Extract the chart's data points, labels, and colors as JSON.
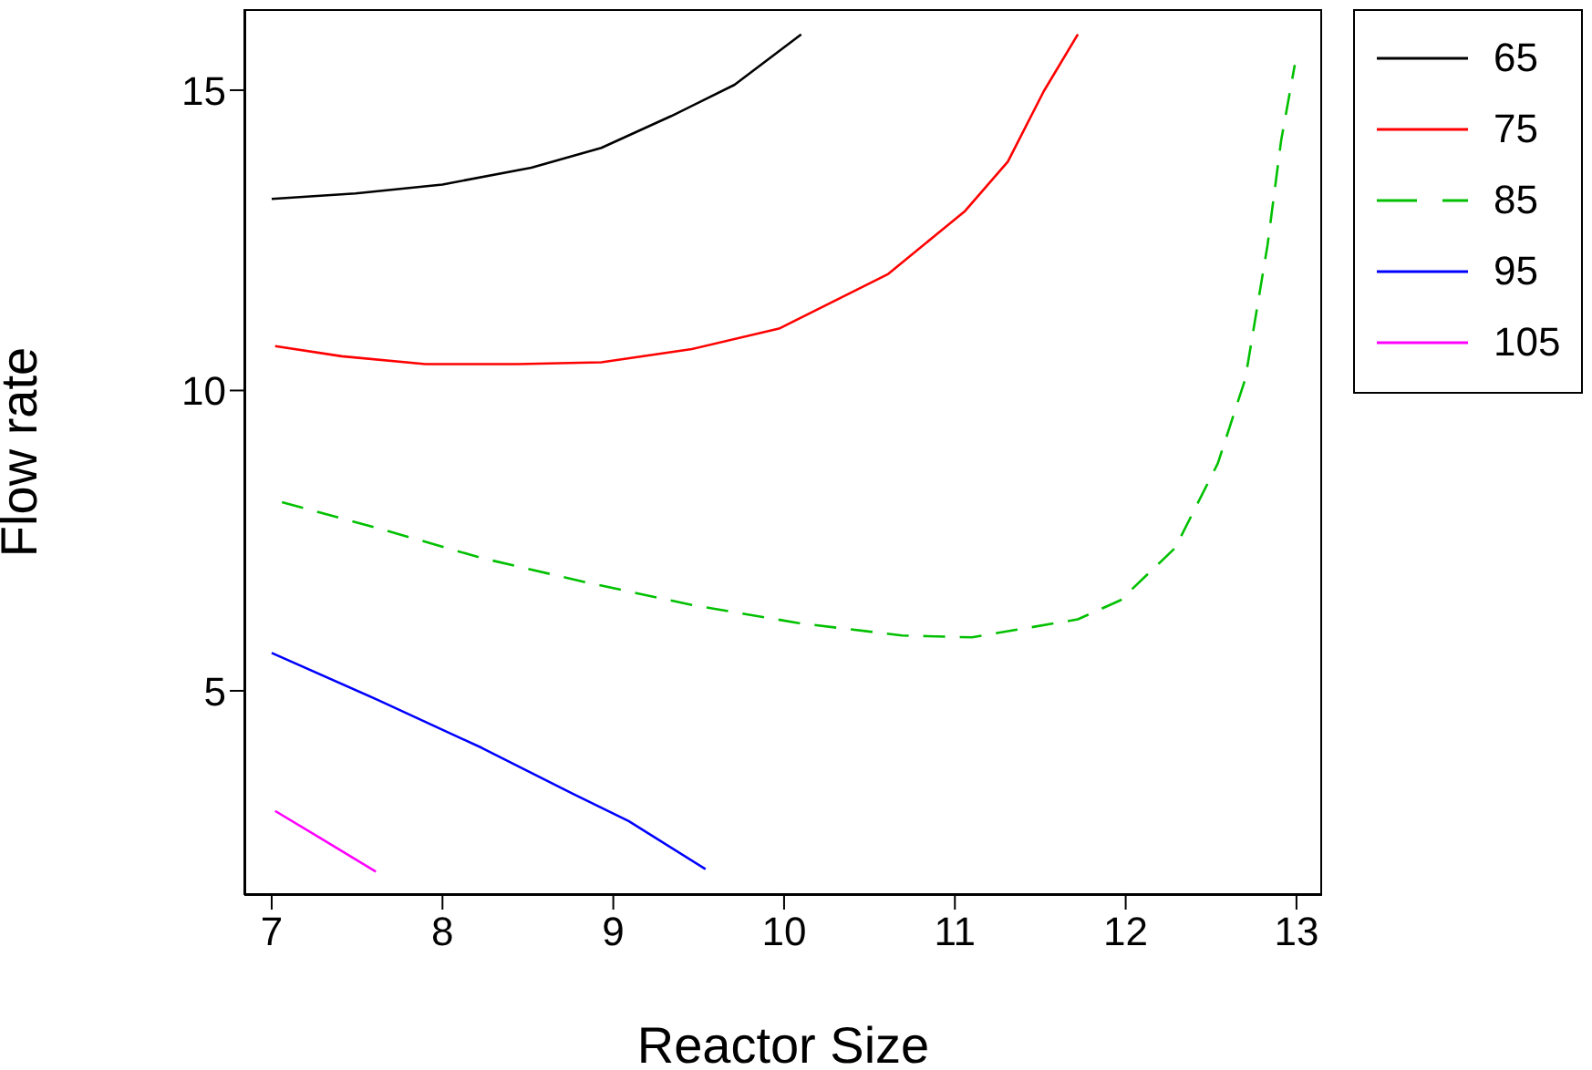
{
  "chart_data": {
    "type": "line",
    "xlabel": "Reactor Size",
    "ylabel": "Flow rate",
    "xlim": [
      6.84,
      13.15
    ],
    "ylim": [
      1.6,
      16.35
    ],
    "xticks": [
      7,
      8,
      9,
      10,
      11,
      12,
      13
    ],
    "yticks": [
      5,
      10,
      15
    ],
    "legend": "right",
    "grid": false,
    "series": [
      {
        "name": "65",
        "color": "#000000",
        "line_style": "solid",
        "x": [
          7,
          7.49,
          8,
          8.52,
          8.93,
          9.34,
          9.71,
          10.1
        ],
        "values": [
          13.19,
          13.28,
          13.43,
          13.71,
          14.04,
          14.57,
          15.09,
          15.93
        ]
      },
      {
        "name": "75",
        "color": "#ff0000",
        "line_style": "solid",
        "x": [
          7.02,
          7.41,
          7.9,
          8.44,
          8.93,
          9.46,
          9.97,
          10.61,
          11.06,
          11.31,
          11.52,
          11.72
        ],
        "values": [
          10.74,
          10.57,
          10.44,
          10.44,
          10.47,
          10.69,
          11.03,
          11.94,
          12.99,
          13.81,
          14.98,
          15.93
        ]
      },
      {
        "name": "85",
        "color": "#00c000",
        "line_style": "dashed",
        "x": [
          7.06,
          7.62,
          8.23,
          8.85,
          9.46,
          10.08,
          10.69,
          11.1,
          11.72,
          11.97,
          12.29,
          12.54,
          12.7,
          12.83,
          12.91,
          12.99
        ],
        "values": [
          8.14,
          7.71,
          7.21,
          6.8,
          6.43,
          6.13,
          5.92,
          5.89,
          6.19,
          6.51,
          7.38,
          8.79,
          10.19,
          12.41,
          14.16,
          15.42
        ]
      },
      {
        "name": "95",
        "color": "#0000ff",
        "line_style": "solid",
        "x": [
          7,
          7.62,
          8.23,
          8.76,
          9.09,
          9.54
        ],
        "values": [
          5.63,
          4.85,
          4.05,
          3.29,
          2.83,
          2.03
        ]
      },
      {
        "name": "105",
        "color": "#ff00ff",
        "line_style": "solid",
        "x": [
          7.02,
          7.29,
          7.61
        ],
        "values": [
          3.0,
          2.54,
          1.99
        ]
      }
    ]
  }
}
